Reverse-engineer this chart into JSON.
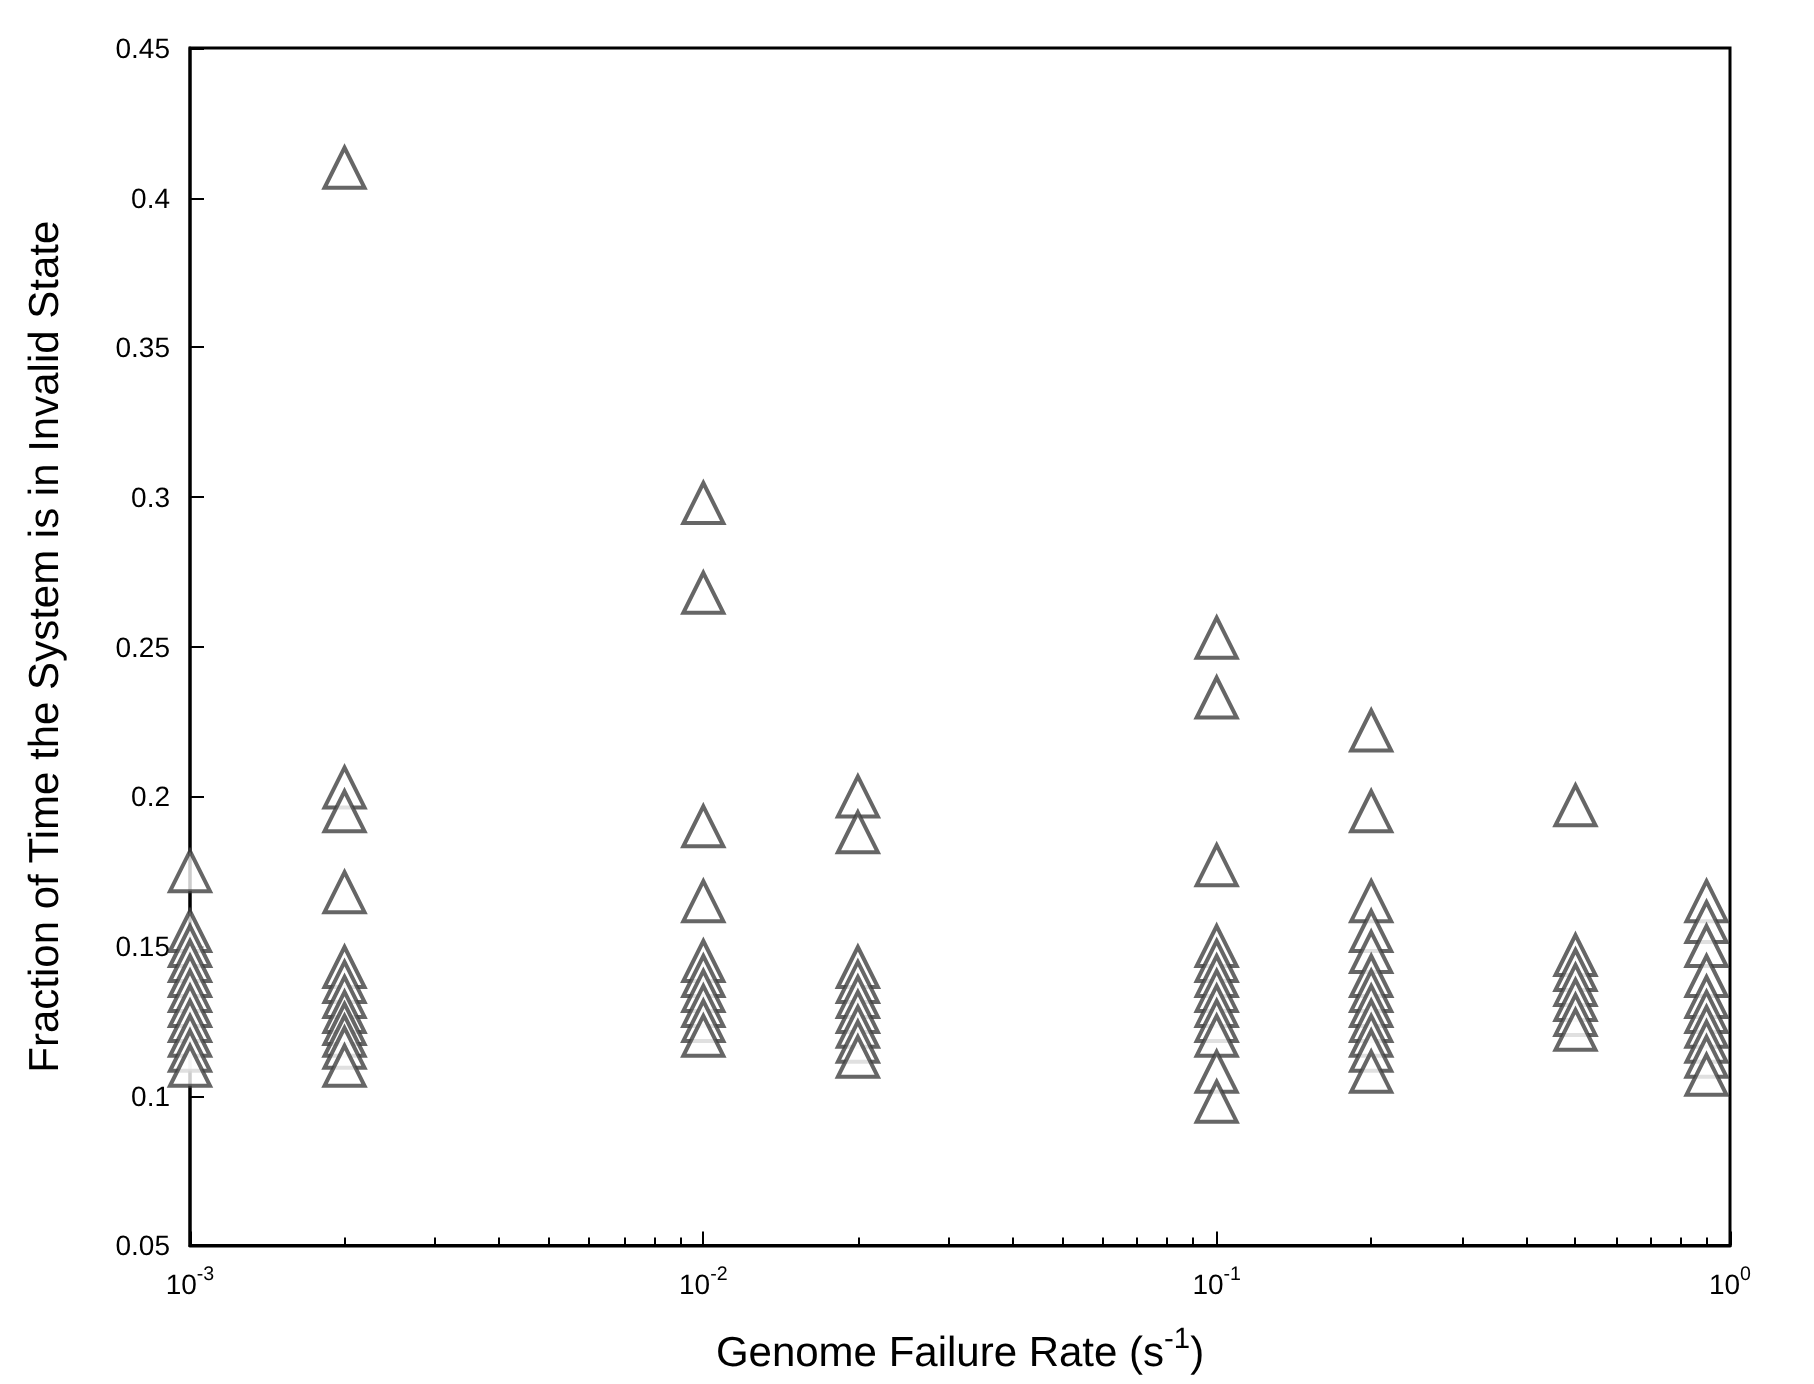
{
  "chart_data": {
    "type": "scatter",
    "xlabel": "Genome Failure Rate (s$^{-1}$)",
    "ylabel": "Fraction of Time the System is in Invalid State",
    "log": "x",
    "grid": false,
    "marker": "triangle",
    "xlim": [
      0.001,
      1
    ],
    "xticks": [
      {
        "value": 0.001,
        "label": "10$^{-3}$"
      },
      {
        "value": 0.01,
        "label": "10$^{-2}$"
      },
      {
        "value": 0.1,
        "label": "10$^{-1}$"
      },
      {
        "value": 1,
        "label": "10$^{0}$"
      }
    ],
    "ylim": [
      0.05,
      0.45
    ],
    "yticks": [
      0.05,
      0.1,
      0.15,
      0.2,
      0.25,
      0.3,
      0.35,
      0.4,
      0.45
    ],
    "series": [
      {
        "color": "#404040",
        "x": [
          0.001,
          0.001,
          0.001,
          0.001,
          0.001,
          0.001,
          0.001,
          0.001,
          0.001,
          0.001,
          0.001,
          0.002,
          0.002,
          0.002,
          0.002,
          0.002,
          0.002,
          0.002,
          0.002,
          0.002,
          0.002,
          0.002,
          0.002,
          0.01,
          0.01,
          0.01,
          0.01,
          0.01,
          0.01,
          0.01,
          0.01,
          0.01,
          0.01,
          0.02,
          0.02,
          0.02,
          0.02,
          0.02,
          0.02,
          0.02,
          0.02,
          0.02,
          0.1,
          0.1,
          0.1,
          0.1,
          0.1,
          0.1,
          0.1,
          0.1,
          0.1,
          0.1,
          0.1,
          0.1,
          0.2,
          0.2,
          0.2,
          0.2,
          0.2,
          0.2,
          0.2,
          0.2,
          0.2,
          0.2,
          0.2,
          0.2,
          0.5,
          0.5,
          0.5,
          0.5,
          0.5,
          0.5,
          0.5,
          0.9,
          0.9,
          0.9,
          0.9,
          0.9,
          0.9,
          0.9,
          0.9,
          0.9,
          0.9
        ],
        "values": [
          0.175,
          0.155,
          0.15,
          0.145,
          0.14,
          0.135,
          0.13,
          0.125,
          0.12,
          0.115,
          0.11,
          0.41,
          0.203,
          0.195,
          0.168,
          0.143,
          0.138,
          0.133,
          0.128,
          0.124,
          0.12,
          0.116,
          0.11,
          0.298,
          0.268,
          0.19,
          0.165,
          0.145,
          0.14,
          0.135,
          0.13,
          0.125,
          0.12,
          0.2,
          0.188,
          0.143,
          0.138,
          0.133,
          0.128,
          0.123,
          0.118,
          0.113,
          0.253,
          0.233,
          0.177,
          0.15,
          0.145,
          0.14,
          0.135,
          0.13,
          0.125,
          0.12,
          0.108,
          0.098,
          0.222,
          0.195,
          0.165,
          0.155,
          0.148,
          0.14,
          0.135,
          0.13,
          0.125,
          0.12,
          0.115,
          0.108,
          0.197,
          0.147,
          0.142,
          0.137,
          0.132,
          0.127,
          0.122,
          0.165,
          0.158,
          0.15,
          0.14,
          0.133,
          0.128,
          0.123,
          0.118,
          0.113,
          0.107
        ]
      }
    ]
  }
}
